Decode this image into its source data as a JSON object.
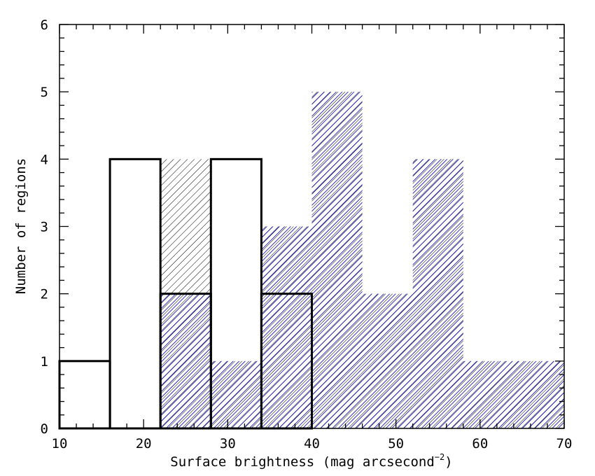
{
  "chart_data": {
    "type": "histogram",
    "xlabel_main": "Surface brightness (mag arcsecond",
    "xlabel_sup": "−2",
    "xlabel_close": ")",
    "ylabel": "Number of regions",
    "xlim": [
      10,
      70
    ],
    "ylim": [
      0,
      6
    ],
    "x_ticks": [
      10,
      20,
      30,
      40,
      50,
      60,
      70
    ],
    "y_ticks": [
      0,
      1,
      2,
      3,
      4,
      5,
      6
    ],
    "bins": [
      10,
      16,
      22,
      28,
      34,
      40,
      46,
      52,
      58,
      64,
      70
    ],
    "series": [
      {
        "style": "hatched",
        "color": "#000000",
        "counts": [
          0,
          0,
          4,
          1,
          3,
          5,
          2,
          4,
          1,
          1
        ]
      },
      {
        "style": "hatched",
        "color": "#0000aa",
        "counts": [
          0,
          0,
          2,
          1,
          3,
          5,
          2,
          4,
          1,
          1
        ]
      },
      {
        "style": "outline",
        "color": "#000000",
        "counts": [
          1,
          4,
          2,
          4,
          2,
          0,
          0,
          0,
          0,
          0
        ]
      }
    ],
    "grid": false,
    "legend": "none"
  }
}
